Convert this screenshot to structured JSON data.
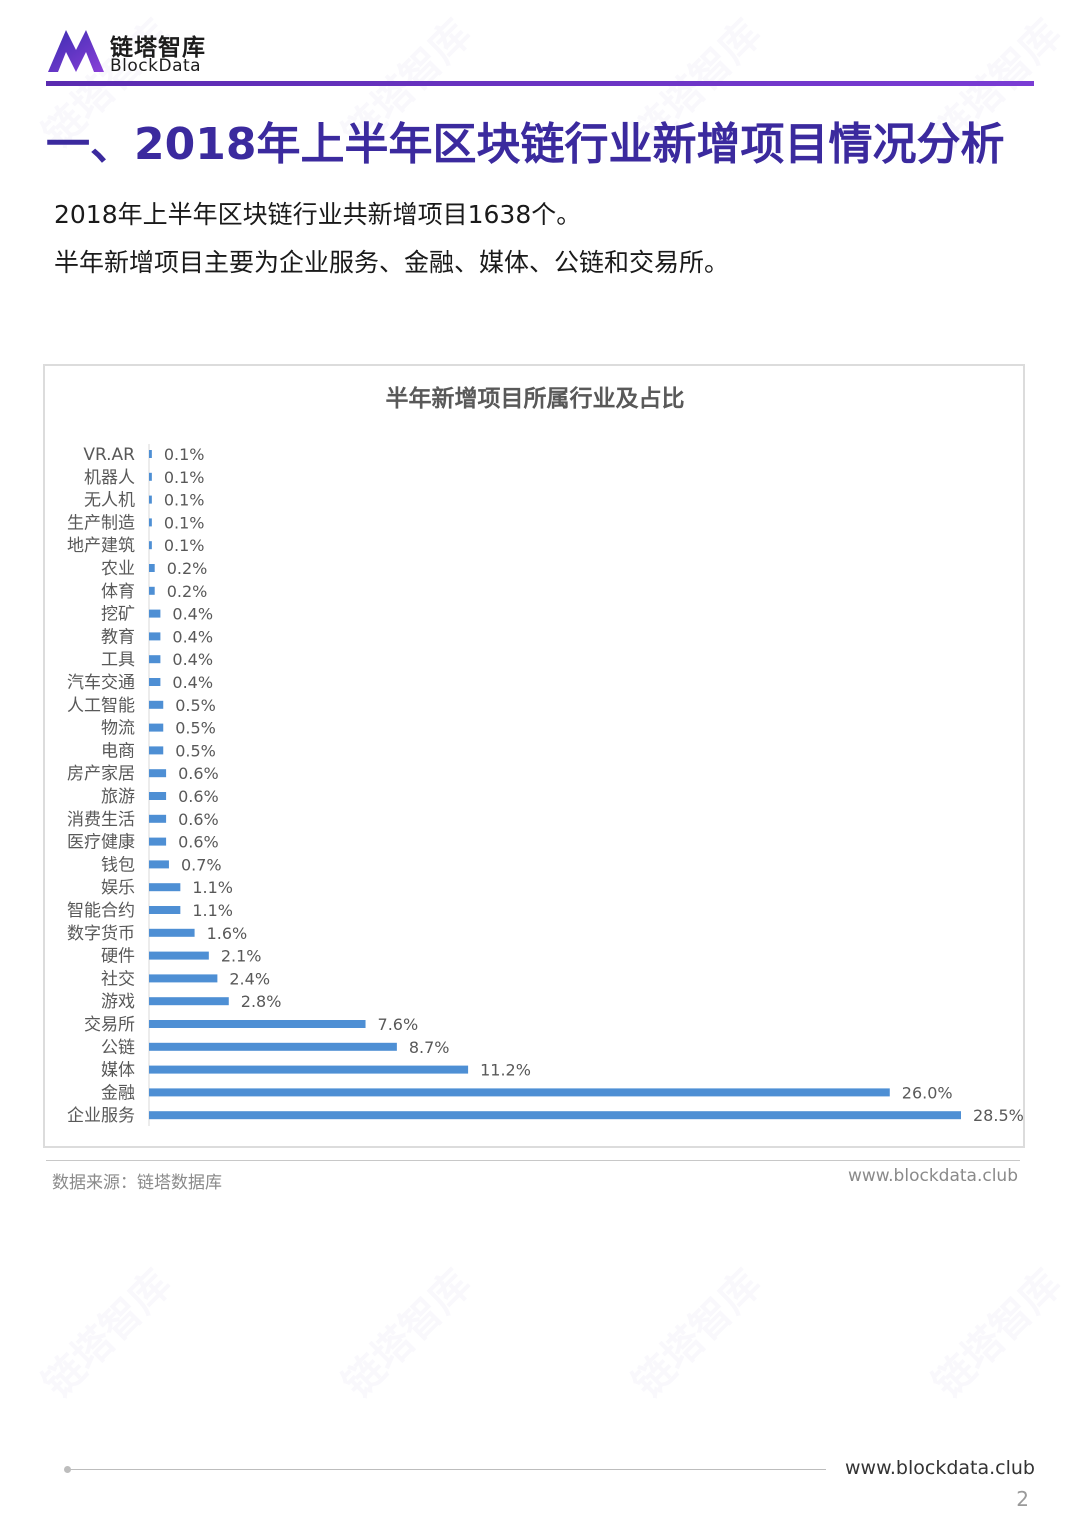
{
  "brand": {
    "name_cn": "链塔智库",
    "name_en": "BlockData",
    "primary_color": "#3b2a9e",
    "accent_color": "#7a3cd4"
  },
  "header": {
    "title": "一、2018年上半年区块链行业新增项目情况分析"
  },
  "intro": {
    "line1": "2018年上半年区块链行业共新增项目1638个。",
    "line2": "半年新增项目主要为企业服务、金融、媒体、公链和交易所。"
  },
  "chart_data": {
    "type": "bar",
    "orientation": "horizontal",
    "title": "半年新增项目所属行业及占比",
    "categories": [
      "VR.AR",
      "机器人",
      "无人机",
      "生产制造",
      "地产建筑",
      "农业",
      "体育",
      "挖矿",
      "教育",
      "工具",
      "汽车交通",
      "人工智能",
      "物流",
      "电商",
      "房产家居",
      "旅游",
      "消费生活",
      "医疗健康",
      "钱包",
      "娱乐",
      "智能合约",
      "数字货币",
      "硬件",
      "社交",
      "游戏",
      "交易所",
      "公链",
      "媒体",
      "金融",
      "企业服务"
    ],
    "values": [
      0.1,
      0.1,
      0.1,
      0.1,
      0.1,
      0.2,
      0.2,
      0.4,
      0.4,
      0.4,
      0.4,
      0.5,
      0.5,
      0.5,
      0.6,
      0.6,
      0.6,
      0.6,
      0.7,
      1.1,
      1.1,
      1.6,
      2.1,
      2.4,
      2.8,
      7.6,
      8.7,
      11.2,
      26.0,
      28.5
    ],
    "labels": [
      "0.1%",
      "0.1%",
      "0.1%",
      "0.1%",
      "0.1%",
      "0.2%",
      "0.2%",
      "0.4%",
      "0.4%",
      "0.4%",
      "0.4%",
      "0.5%",
      "0.5%",
      "0.5%",
      "0.6%",
      "0.6%",
      "0.6%",
      "0.6%",
      "0.7%",
      "1.1%",
      "1.1%",
      "1.6%",
      "2.1%",
      "2.4%",
      "2.8%",
      "7.6%",
      "8.7%",
      "11.2%",
      "26.0%",
      "28.5%"
    ],
    "unit": "%",
    "bar_color": "#4e8fd4",
    "xlim": [
      0,
      28.5
    ],
    "grid": false,
    "legend": false
  },
  "source": {
    "text": "数据来源：链塔数据库",
    "url": "www.blockdata.club"
  },
  "footer": {
    "url": "www.blockdata.club",
    "page_number": "2"
  }
}
